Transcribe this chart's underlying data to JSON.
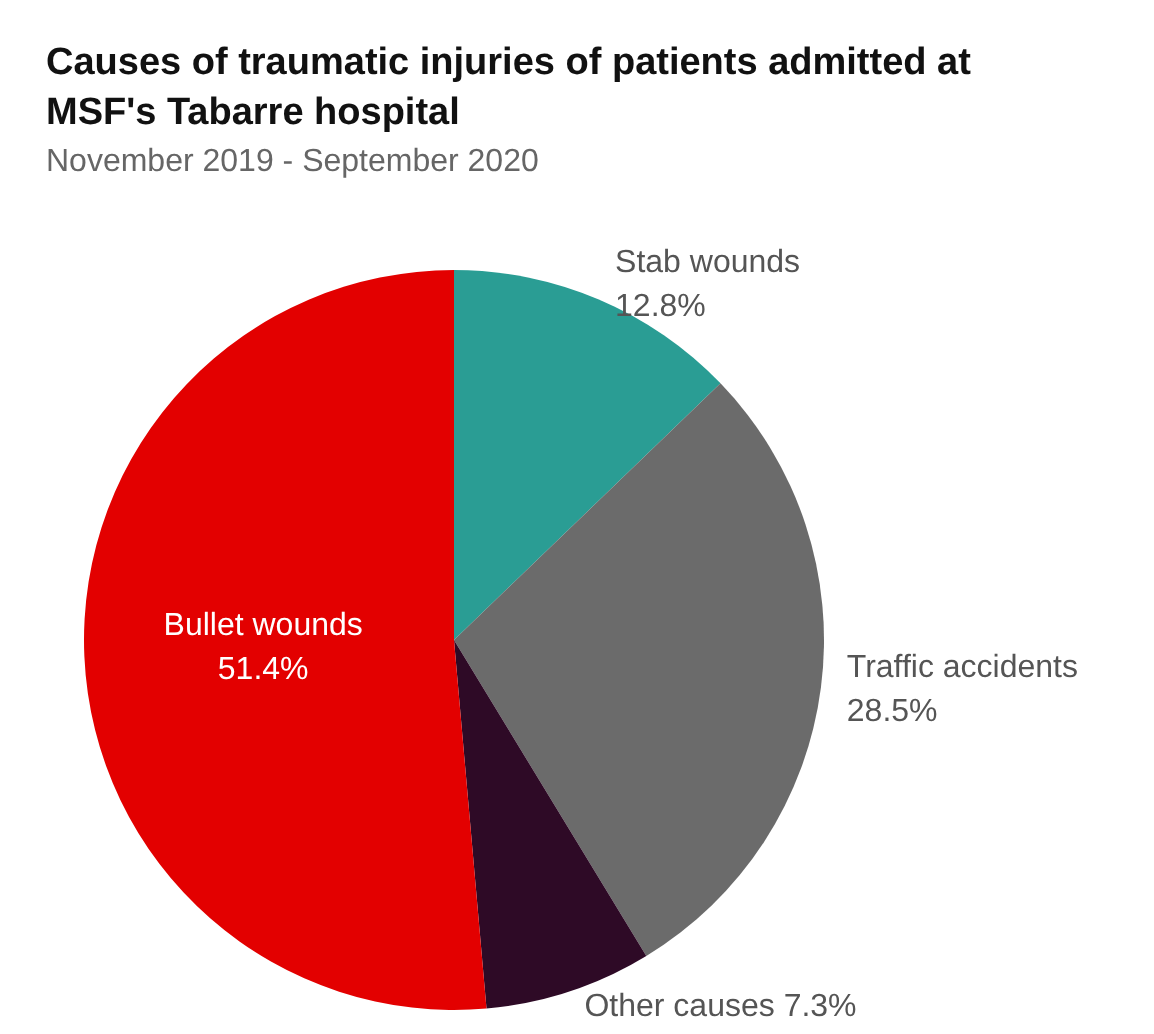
{
  "chart_data": {
    "type": "pie",
    "title": "Causes of traumatic injuries of patients admitted at\nMSF's Tabarre hospital",
    "subtitle": "November 2019 - September 2020",
    "categories": [
      "Stab wounds",
      "Traffic accidents",
      "Other causes",
      "Bullet wounds"
    ],
    "values": [
      12.8,
      28.5,
      7.3,
      51.4
    ],
    "colors": [
      "#2a9d94",
      "#6b6b6b",
      "#2e0a26",
      "#e30000"
    ],
    "value_labels": [
      "12.8%",
      "28.5%",
      "7.3%",
      "51.4%"
    ]
  }
}
